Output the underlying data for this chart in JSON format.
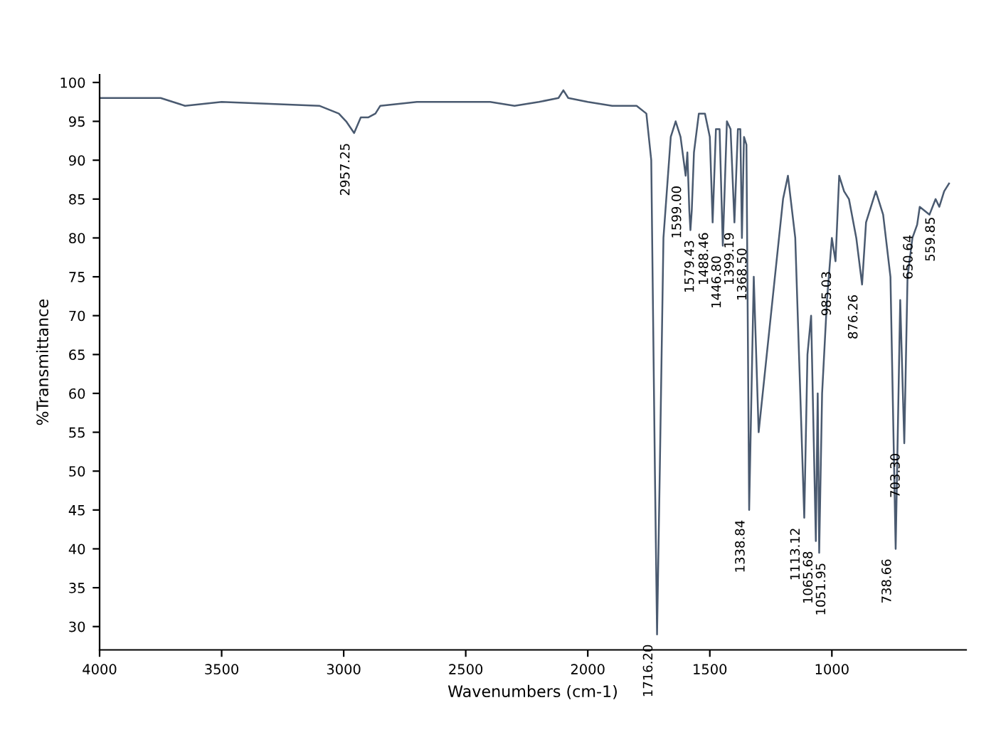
{
  "chart_data": {
    "type": "line",
    "xlabel": "Wavenumbers (cm-1)",
    "ylabel": "%Transmittance",
    "xlim": [
      4000,
      450
    ],
    "ylim": [
      27,
      101
    ],
    "xticks": [
      4000,
      3500,
      3000,
      2500,
      2000,
      1500,
      1000
    ],
    "yticks": [
      30,
      35,
      40,
      45,
      50,
      55,
      60,
      65,
      70,
      75,
      80,
      85,
      90,
      95,
      100
    ],
    "grid": false,
    "marker": "none",
    "line_style": "solid",
    "series": [
      {
        "color": "#4a5a70",
        "x": [
          4000,
          3750,
          3650,
          3500,
          3100,
          3020,
          2990,
          2957.25,
          2930,
          2900,
          2870,
          2850,
          2700,
          2400,
          2300,
          2200,
          2120,
          2100,
          2080,
          2000,
          1900,
          1800,
          1760,
          1740,
          1725,
          1716.2,
          1705,
          1690,
          1660,
          1640,
          1620,
          1599,
          1592,
          1584,
          1579.43,
          1574,
          1565,
          1545,
          1520,
          1500,
          1488.46,
          1475,
          1460,
          1446.8,
          1430,
          1415,
          1399.19,
          1385,
          1375,
          1368.5,
          1360,
          1350,
          1338.84,
          1320,
          1300,
          1250,
          1200,
          1180,
          1150,
          1113.12,
          1100,
          1085,
          1065.68,
          1058,
          1051.95,
          1040,
          1020,
          1000,
          985.03,
          970,
          950,
          930,
          900,
          876.26,
          860,
          820,
          790,
          760,
          738.66,
          720,
          703.3,
          690,
          670,
          650.64,
          640,
          600,
          575,
          559.85,
          540,
          520
        ],
        "values": [
          98,
          98,
          97,
          97.5,
          97,
          96,
          95,
          93.5,
          95.5,
          95.5,
          96,
          97,
          97.5,
          97.5,
          97,
          97.5,
          98,
          99,
          98,
          97.5,
          97,
          97,
          96,
          90,
          50,
          29,
          50,
          80,
          93,
          95,
          93,
          88,
          91,
          83.5,
          81,
          83.5,
          91,
          96,
          96,
          93,
          82,
          94,
          94,
          79,
          95,
          94,
          82,
          94,
          94,
          80,
          93,
          92,
          45,
          75,
          55,
          70,
          85,
          88,
          80,
          44,
          65,
          70,
          41,
          60,
          39.5,
          60,
          72,
          80,
          77,
          88,
          86,
          85,
          80,
          74,
          82,
          86,
          83,
          75,
          40,
          72,
          53.6,
          75,
          80,
          81.7,
          84,
          83,
          85,
          84,
          86,
          87
        ]
      }
    ],
    "annotations": [
      {
        "text": "2957.25",
        "x": 2957.25,
        "y": 93.5
      },
      {
        "text": "1716.20",
        "x": 1716.2,
        "y": 29
      },
      {
        "text": "1599.00",
        "x": 1599,
        "y": 88
      },
      {
        "text": "1579.43",
        "x": 1579.43,
        "y": 81
      },
      {
        "text": "1488.46",
        "x": 1488.46,
        "y": 82
      },
      {
        "text": "1446.80",
        "x": 1446.8,
        "y": 79
      },
      {
        "text": "1399.19",
        "x": 1399.19,
        "y": 82
      },
      {
        "text": "1368.50",
        "x": 1368.5,
        "y": 80
      },
      {
        "text": "1338.84",
        "x": 1338.84,
        "y": 45
      },
      {
        "text": "1113.12",
        "x": 1113.12,
        "y": 44
      },
      {
        "text": "1065.68",
        "x": 1065.68,
        "y": 41
      },
      {
        "text": "1051.95",
        "x": 1051.95,
        "y": 39.5
      },
      {
        "text": "985.03",
        "x": 985.03,
        "y": 77
      },
      {
        "text": "876.26",
        "x": 876.26,
        "y": 74
      },
      {
        "text": "738.66",
        "x": 738.66,
        "y": 40
      },
      {
        "text": "703.30",
        "x": 703.3,
        "y": 53.6
      },
      {
        "text": "650.64",
        "x": 650.64,
        "y": 81.7
      },
      {
        "text": "559.85",
        "x": 559.85,
        "y": 84
      }
    ]
  }
}
